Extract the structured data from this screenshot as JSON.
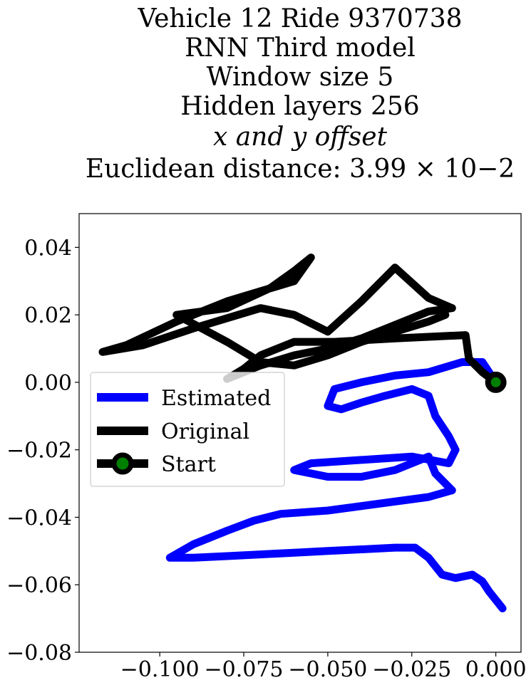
{
  "chart_data": {
    "type": "line",
    "title_lines": [
      "Vehicle 12 Ride 9370738",
      "RNN Third model",
      "Window size 5",
      "Hidden layers 256",
      "x and y offset",
      "Euclidean distance: 3.99 × 10−2"
    ],
    "xlim": [
      -0.124,
      0.0075
    ],
    "ylim": [
      -0.08,
      0.05
    ],
    "xticks": [
      -0.1,
      -0.075,
      -0.05,
      -0.025,
      0.0
    ],
    "xtick_labels": [
      "−0.100",
      "−0.075",
      "−0.050",
      "−0.025",
      "0.000"
    ],
    "yticks": [
      0.04,
      0.02,
      0.0,
      -0.02,
      -0.04,
      -0.06,
      -0.08
    ],
    "ytick_labels": [
      "0.04",
      "0.02",
      "0.00",
      "−0.02",
      "−0.04",
      "−0.06",
      "−0.08"
    ],
    "legend_position": "center-left",
    "series": [
      {
        "name": "Estimated",
        "color": "#0000ff",
        "points": [
          [
            0.0,
            0.0
          ],
          [
            -0.004,
            0.006
          ],
          [
            -0.01,
            0.006
          ],
          [
            -0.02,
            0.003
          ],
          [
            -0.03,
            0.002
          ],
          [
            -0.04,
            0.0
          ],
          [
            -0.048,
            -0.002
          ],
          [
            -0.05,
            -0.007
          ],
          [
            -0.046,
            -0.008
          ],
          [
            -0.04,
            -0.006
          ],
          [
            -0.033,
            -0.004
          ],
          [
            -0.025,
            -0.002
          ],
          [
            -0.02,
            -0.004
          ],
          [
            -0.018,
            -0.01
          ],
          [
            -0.014,
            -0.016
          ],
          [
            -0.012,
            -0.02
          ],
          [
            -0.014,
            -0.024
          ],
          [
            -0.025,
            -0.022
          ],
          [
            -0.04,
            -0.023
          ],
          [
            -0.055,
            -0.024
          ],
          [
            -0.06,
            -0.026
          ],
          [
            -0.05,
            -0.028
          ],
          [
            -0.04,
            -0.028
          ],
          [
            -0.03,
            -0.026
          ],
          [
            -0.02,
            -0.022
          ],
          [
            -0.018,
            -0.027
          ],
          [
            -0.013,
            -0.032
          ],
          [
            -0.02,
            -0.034
          ],
          [
            -0.035,
            -0.036
          ],
          [
            -0.05,
            -0.038
          ],
          [
            -0.064,
            -0.039
          ],
          [
            -0.072,
            -0.041
          ],
          [
            -0.08,
            -0.044
          ],
          [
            -0.09,
            -0.048
          ],
          [
            -0.097,
            -0.052
          ],
          [
            -0.09,
            -0.052
          ],
          [
            -0.08,
            -0.0515
          ],
          [
            -0.07,
            -0.051
          ],
          [
            -0.06,
            -0.0505
          ],
          [
            -0.05,
            -0.05
          ],
          [
            -0.04,
            -0.0495
          ],
          [
            -0.03,
            -0.049
          ],
          [
            -0.024,
            -0.049
          ],
          [
            -0.02,
            -0.052
          ],
          [
            -0.016,
            -0.057
          ],
          [
            -0.012,
            -0.058
          ],
          [
            -0.007,
            -0.057
          ],
          [
            -0.004,
            -0.059
          ],
          [
            -0.002,
            -0.062
          ],
          [
            0.002,
            -0.067
          ]
        ]
      },
      {
        "name": "Original",
        "color": "#000000",
        "points": [
          [
            0.0,
            0.0
          ],
          [
            -0.004,
            0.003
          ],
          [
            -0.008,
            0.007
          ],
          [
            -0.009,
            0.014
          ],
          [
            -0.03,
            0.013
          ],
          [
            -0.048,
            0.012
          ],
          [
            -0.06,
            0.012
          ],
          [
            -0.07,
            0.008
          ],
          [
            -0.075,
            0.004
          ],
          [
            -0.08,
            0.001
          ],
          [
            -0.07,
            0.005
          ],
          [
            -0.06,
            0.008
          ],
          [
            -0.05,
            0.01
          ],
          [
            -0.04,
            0.013
          ],
          [
            -0.03,
            0.017
          ],
          [
            -0.02,
            0.021
          ],
          [
            -0.013,
            0.022
          ],
          [
            -0.02,
            0.025
          ],
          [
            -0.03,
            0.034
          ],
          [
            -0.04,
            0.024
          ],
          [
            -0.05,
            0.015
          ],
          [
            -0.06,
            0.02
          ],
          [
            -0.07,
            0.022
          ],
          [
            -0.08,
            0.019
          ],
          [
            -0.09,
            0.016
          ],
          [
            -0.105,
            0.011
          ],
          [
            -0.117,
            0.009
          ],
          [
            -0.11,
            0.011
          ],
          [
            -0.095,
            0.018
          ],
          [
            -0.08,
            0.024
          ],
          [
            -0.06,
            0.03
          ],
          [
            -0.055,
            0.037
          ],
          [
            -0.06,
            0.033
          ],
          [
            -0.067,
            0.028
          ],
          [
            -0.08,
            0.022
          ],
          [
            -0.095,
            0.02
          ],
          [
            -0.08,
            0.012
          ],
          [
            -0.07,
            0.006
          ],
          [
            -0.06,
            0.005
          ],
          [
            -0.05,
            0.008
          ],
          [
            -0.04,
            0.012
          ],
          [
            -0.03,
            0.015
          ],
          [
            -0.02,
            0.018
          ],
          [
            -0.015,
            0.02
          ]
        ]
      },
      {
        "name": "Start",
        "color": "#008000",
        "edgecolor": "#000000",
        "points": [
          [
            0.0,
            0.0
          ]
        ]
      }
    ]
  }
}
